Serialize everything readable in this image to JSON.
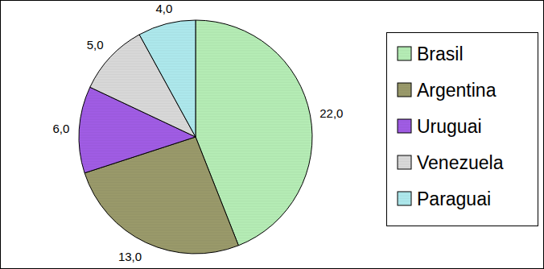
{
  "chart_data": {
    "type": "pie",
    "categories": [
      "Brasil",
      "Argentina",
      "Uruguai",
      "Venezuela",
      "Paraguai"
    ],
    "values": [
      22,
      13,
      6,
      5,
      4
    ],
    "value_labels": [
      "22,0",
      "13,0",
      "6,0",
      "5,0",
      "4,0"
    ],
    "colors": [
      "#b8f0b8",
      "#9c9c6c",
      "#a35ee8",
      "#dcdcdc",
      "#b0ecf0"
    ],
    "data_labels": true,
    "legend": "right"
  }
}
